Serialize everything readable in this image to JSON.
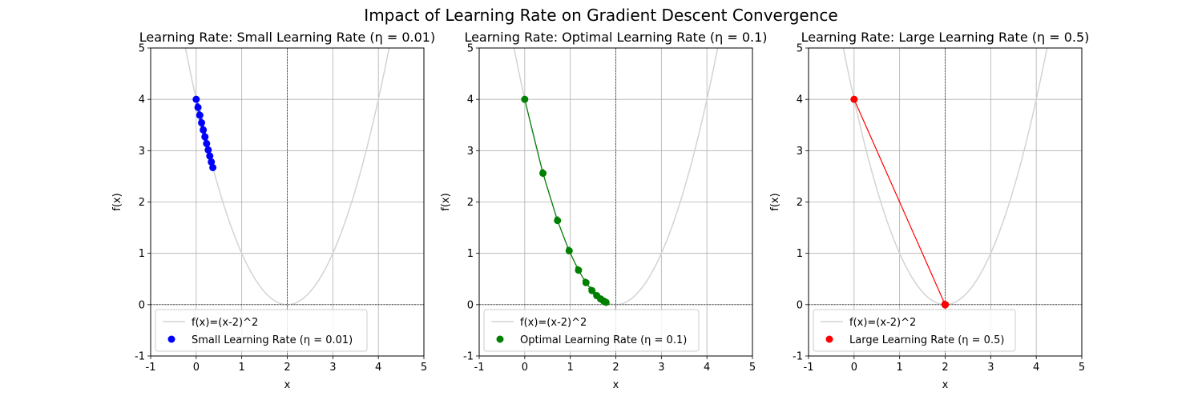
{
  "figure": {
    "suptitle": "Impact of Learning Rate on Gradient Descent Convergence",
    "curve_color": "#d3d3d3",
    "guide_color": "#000000"
  },
  "chart_data": [
    {
      "type": "line",
      "title": "Learning Rate: Small Learning Rate (η = 0.01)",
      "xlabel": "x",
      "ylabel": "f(x)",
      "xlim": [
        -1,
        5
      ],
      "ylim": [
        -1,
        5
      ],
      "xticks": [
        -1,
        0,
        1,
        2,
        3,
        4,
        5
      ],
      "yticks": [
        -1,
        0,
        1,
        2,
        3,
        4,
        5
      ],
      "grid": true,
      "legend_position": "lower left",
      "curve": {
        "name": "f(x)=(x-2)^2",
        "expr": "(x-2)^2",
        "color": "#d3d3d3"
      },
      "series": [
        {
          "name": "Small Learning Rate (η = 0.01)",
          "color": "#0000ff",
          "x": [
            0,
            0.04,
            0.0792,
            0.1176,
            0.1553,
            0.1922,
            0.2284,
            0.2638,
            0.2985,
            0.3325,
            0.3659
          ],
          "y": [
            4,
            3.8416,
            3.6895,
            3.5434,
            3.4031,
            3.2683,
            3.1389,
            3.0146,
            2.8952,
            2.7806,
            2.6705
          ]
        }
      ]
    },
    {
      "type": "line",
      "title": "Learning Rate: Optimal Learning Rate (η = 0.1)",
      "xlabel": "x",
      "ylabel": "f(x)",
      "xlim": [
        -1,
        5
      ],
      "ylim": [
        -1,
        5
      ],
      "xticks": [
        -1,
        0,
        1,
        2,
        3,
        4,
        5
      ],
      "yticks": [
        -1,
        0,
        1,
        2,
        3,
        4,
        5
      ],
      "grid": true,
      "legend_position": "lower left",
      "curve": {
        "name": "f(x)=(x-2)^2",
        "expr": "(x-2)^2",
        "color": "#d3d3d3"
      },
      "series": [
        {
          "name": "Optimal Learning Rate (η = 0.1)",
          "color": "#008000",
          "x": [
            0,
            0.4,
            0.72,
            0.976,
            1.1808,
            1.3446,
            1.4757,
            1.5806,
            1.6645,
            1.7316,
            1.7853
          ],
          "y": [
            4,
            2.56,
            1.6384,
            1.0486,
            0.6711,
            0.4295,
            0.2749,
            0.1759,
            0.1126,
            0.0721,
            0.0461
          ]
        }
      ]
    },
    {
      "type": "line",
      "title": "Learning Rate: Large Learning Rate (η = 0.5)",
      "xlabel": "x",
      "ylabel": "f(x)",
      "xlim": [
        -1,
        5
      ],
      "ylim": [
        -1,
        5
      ],
      "xticks": [
        -1,
        0,
        1,
        2,
        3,
        4,
        5
      ],
      "yticks": [
        -1,
        0,
        1,
        2,
        3,
        4,
        5
      ],
      "grid": true,
      "legend_position": "lower left",
      "curve": {
        "name": "f(x)=(x-2)^2",
        "expr": "(x-2)^2",
        "color": "#d3d3d3"
      },
      "series": [
        {
          "name": "Large Learning Rate (η = 0.5)",
          "color": "#ff0000",
          "x": [
            0,
            2,
            2,
            2,
            2,
            2,
            2,
            2,
            2,
            2,
            2
          ],
          "y": [
            4,
            0,
            0,
            0,
            0,
            0,
            0,
            0,
            0,
            0,
            0
          ]
        }
      ]
    }
  ]
}
